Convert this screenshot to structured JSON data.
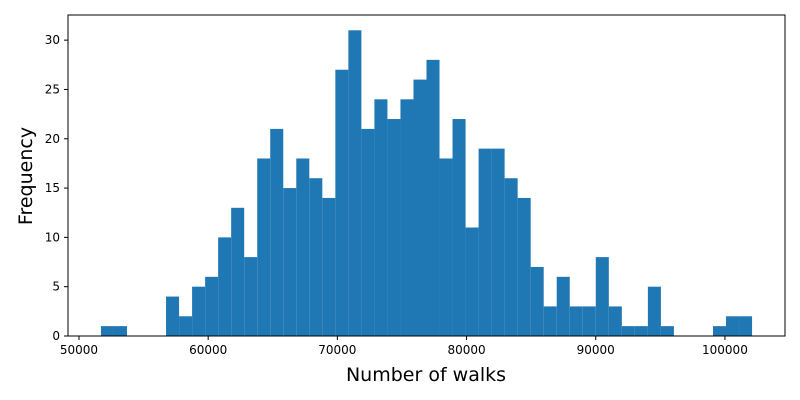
{
  "chart_data": {
    "type": "histogram",
    "x_label": "Number of walks",
    "y_label": "Frequency",
    "color": "#1f77b4",
    "bins": [
      51700,
      52708,
      53716,
      54724,
      55732,
      56740,
      57748,
      58756,
      59764,
      60772,
      61780,
      62788,
      63796,
      64804,
      65812,
      66820,
      67828,
      68836,
      69844,
      70852,
      71860,
      72868,
      73876,
      74884,
      75892,
      76900,
      77908,
      78916,
      79924,
      80932,
      81940,
      82948,
      83956,
      84964,
      85972,
      86980,
      87988,
      88996,
      90004,
      91012,
      92020,
      93028,
      94036,
      95044,
      96052,
      97060,
      98068,
      99076,
      100084,
      101092,
      102100
    ],
    "counts": [
      1,
      1,
      0,
      0,
      0,
      4,
      2,
      5,
      6,
      10,
      13,
      8,
      18,
      21,
      15,
      18,
      16,
      14,
      27,
      31,
      21,
      24,
      22,
      24,
      26,
      28,
      18,
      22,
      11,
      19,
      19,
      16,
      14,
      7,
      3,
      6,
      3,
      3,
      8,
      3,
      1,
      1,
      5,
      1,
      0,
      0,
      0,
      1,
      2,
      2
    ],
    "xlim": [
      49150,
      104650
    ],
    "xticks": [
      50000,
      60000,
      70000,
      80000,
      90000,
      100000
    ],
    "ylim": [
      0,
      32.55
    ],
    "yticks": [
      0,
      5,
      10,
      15,
      20,
      25,
      30
    ]
  }
}
